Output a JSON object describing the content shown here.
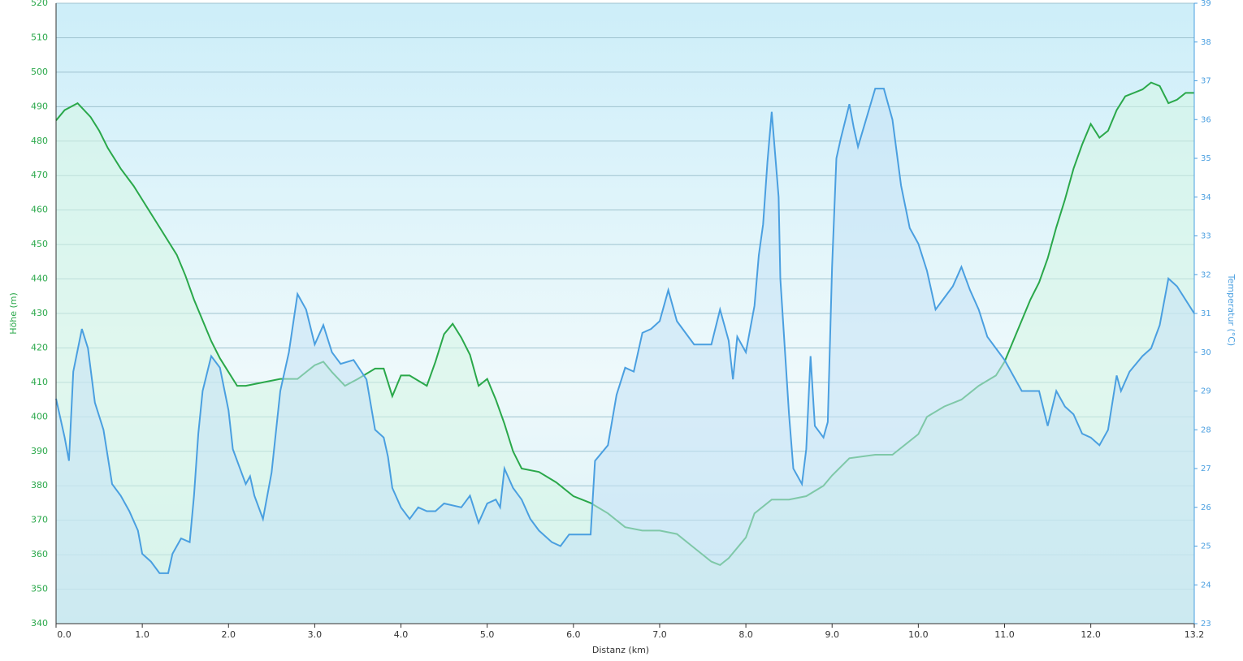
{
  "chart_data": {
    "type": "line",
    "x_label": "Distanz  (km)",
    "y_label": "Höhe (m)",
    "y2_label": "Temperatur (°C)",
    "xlim": [
      0,
      13.2
    ],
    "xticks": [
      {
        "value": 0,
        "label": "0.0"
      },
      {
        "value": 1,
        "label": "1.0"
      },
      {
        "value": 2,
        "label": "2.0"
      },
      {
        "value": 3,
        "label": "3.0"
      },
      {
        "value": 4,
        "label": "4.0"
      },
      {
        "value": 5,
        "label": "5.0"
      },
      {
        "value": 6,
        "label": "6.0"
      },
      {
        "value": 7,
        "label": "7.0"
      },
      {
        "value": 8,
        "label": "8.0"
      },
      {
        "value": 9,
        "label": "9.0"
      },
      {
        "value": 10,
        "label": "10.0"
      },
      {
        "value": 11,
        "label": "11.0"
      },
      {
        "value": 12,
        "label": "12.0"
      },
      {
        "value": 13.2,
        "label": "13.2"
      }
    ],
    "ylim": [
      340,
      520
    ],
    "yticks": [
      340,
      350,
      360,
      370,
      380,
      390,
      400,
      410,
      420,
      430,
      440,
      450,
      460,
      470,
      480,
      490,
      500,
      510,
      520
    ],
    "y2lim": [
      23,
      39
    ],
    "y2ticks": [
      23,
      24,
      25,
      26,
      27,
      28,
      29,
      30,
      31,
      32,
      33,
      34,
      35,
      36,
      37,
      38,
      39
    ],
    "grid": true,
    "series": [
      {
        "color": "#2aa84a",
        "fill": "#d6f5e4",
        "x": [
          0,
          0.1,
          0.25,
          0.4,
          0.5,
          0.6,
          0.75,
          0.9,
          1.0,
          1.2,
          1.4,
          1.5,
          1.6,
          1.7,
          1.8,
          1.9,
          2.0,
          2.1,
          2.2,
          2.4,
          2.6,
          2.8,
          3.0,
          3.1,
          3.2,
          3.35,
          3.5,
          3.7,
          3.8,
          3.9,
          4.0,
          4.1,
          4.3,
          4.4,
          4.5,
          4.6,
          4.7,
          4.8,
          4.9,
          5.0,
          5.1,
          5.2,
          5.3,
          5.4,
          5.6,
          5.8,
          6.0,
          6.2,
          6.4,
          6.6,
          6.8,
          7.0,
          7.2,
          7.4,
          7.6,
          7.7,
          7.8,
          8.0,
          8.1,
          8.3,
          8.5,
          8.7,
          8.9,
          9.0,
          9.2,
          9.5,
          9.7,
          10.0,
          10.1,
          10.3,
          10.5,
          10.7,
          10.9,
          11.0,
          11.1,
          11.2,
          11.3,
          11.4,
          11.5,
          11.6,
          11.7,
          11.8,
          11.9,
          12.0,
          12.1,
          12.2,
          12.3,
          12.4,
          12.6,
          12.7,
          12.8,
          12.9,
          13.0,
          13.1,
          13.2
        ],
        "values": [
          486,
          489,
          491,
          487,
          483,
          478,
          472,
          467,
          463,
          455,
          447,
          441,
          434,
          428,
          422,
          417,
          413,
          409,
          409,
          410,
          411,
          411,
          415,
          416,
          413,
          409,
          411,
          414,
          414,
          406,
          412,
          412,
          409,
          416,
          424,
          427,
          423,
          418,
          409,
          411,
          405,
          398,
          390,
          385,
          384,
          381,
          377,
          375,
          372,
          368,
          367,
          367,
          366,
          362,
          358,
          357,
          359,
          365,
          372,
          376,
          376,
          377,
          380,
          383,
          388,
          389,
          389,
          395,
          400,
          403,
          405,
          409,
          412,
          416,
          422,
          428,
          434,
          439,
          446,
          455,
          463,
          472,
          479,
          485,
          481,
          483,
          489,
          493,
          495,
          497,
          496,
          491,
          492,
          494,
          494
        ]
      },
      {
        "color": "#4a9fe0",
        "fill": "#c4e2f6",
        "axis": "y2",
        "x": [
          0,
          0.1,
          0.15,
          0.2,
          0.3,
          0.37,
          0.45,
          0.55,
          0.65,
          0.75,
          0.85,
          0.95,
          1.0,
          1.1,
          1.2,
          1.3,
          1.35,
          1.45,
          1.55,
          1.6,
          1.65,
          1.7,
          1.8,
          1.9,
          2.0,
          2.05,
          2.15,
          2.2,
          2.25,
          2.3,
          2.4,
          2.5,
          2.6,
          2.7,
          2.8,
          2.9,
          3.0,
          3.1,
          3.2,
          3.3,
          3.45,
          3.6,
          3.7,
          3.8,
          3.85,
          3.9,
          4.0,
          4.1,
          4.2,
          4.3,
          4.4,
          4.5,
          4.7,
          4.8,
          4.9,
          5.0,
          5.1,
          5.15,
          5.2,
          5.3,
          5.4,
          5.5,
          5.6,
          5.75,
          5.85,
          5.95,
          6.2,
          6.25,
          6.4,
          6.5,
          6.6,
          6.7,
          6.8,
          6.9,
          7.0,
          7.1,
          7.2,
          7.3,
          7.4,
          7.6,
          7.7,
          7.8,
          7.85,
          7.9,
          8.0,
          8.1,
          8.15,
          8.2,
          8.25,
          8.3,
          8.38,
          8.4,
          8.5,
          8.55,
          8.65,
          8.7,
          8.75,
          8.8,
          8.9,
          8.95,
          9.0,
          9.05,
          9.1,
          9.2,
          9.25,
          9.3,
          9.5,
          9.6,
          9.7,
          9.8,
          9.9,
          10.0,
          10.1,
          10.2,
          10.3,
          10.4,
          10.5,
          10.6,
          10.7,
          10.8,
          10.9,
          11.0,
          11.2,
          11.4,
          11.5,
          11.6,
          11.7,
          11.8,
          11.9,
          12.0,
          12.1,
          12.2,
          12.3,
          12.35,
          12.45,
          12.6,
          12.7,
          12.8,
          12.9,
          13.0,
          13.2
        ],
        "values": [
          28.8,
          27.8,
          27.2,
          29.5,
          30.6,
          30.1,
          28.7,
          28.0,
          26.6,
          26.3,
          25.9,
          25.4,
          24.8,
          24.6,
          24.3,
          24.3,
          24.8,
          25.2,
          25.1,
          26.3,
          27.9,
          29.0,
          29.9,
          29.6,
          28.5,
          27.5,
          26.9,
          26.6,
          26.8,
          26.3,
          25.7,
          26.9,
          29.0,
          30.0,
          31.5,
          31.1,
          30.2,
          30.7,
          30.0,
          29.7,
          29.8,
          29.3,
          28.0,
          27.8,
          27.3,
          26.5,
          26.0,
          25.7,
          26.0,
          25.9,
          25.9,
          26.1,
          26.0,
          26.3,
          25.6,
          26.1,
          26.2,
          26.0,
          27.0,
          26.5,
          26.2,
          25.7,
          25.4,
          25.1,
          25.0,
          25.3,
          25.3,
          27.2,
          27.6,
          28.9,
          29.6,
          29.5,
          30.5,
          30.6,
          30.8,
          31.6,
          30.8,
          30.5,
          30.2,
          30.2,
          31.1,
          30.3,
          29.3,
          30.4,
          30.0,
          31.2,
          32.5,
          33.3,
          34.9,
          36.2,
          34.0,
          31.9,
          28.4,
          27.0,
          26.6,
          27.5,
          29.9,
          28.1,
          27.8,
          28.2,
          32.2,
          35.0,
          35.5,
          36.4,
          35.8,
          35.3,
          36.8,
          36.8,
          36.0,
          34.3,
          33.2,
          32.8,
          32.1,
          31.1,
          31.4,
          31.7,
          32.2,
          31.6,
          31.1,
          30.4,
          30.1,
          29.8,
          29.0,
          29.0,
          28.1,
          29.0,
          28.6,
          28.4,
          27.9,
          27.8,
          27.6,
          28.0,
          29.4,
          29.0,
          29.5,
          29.9,
          30.1,
          30.7,
          31.9,
          31.7,
          31.0
        ]
      }
    ]
  }
}
